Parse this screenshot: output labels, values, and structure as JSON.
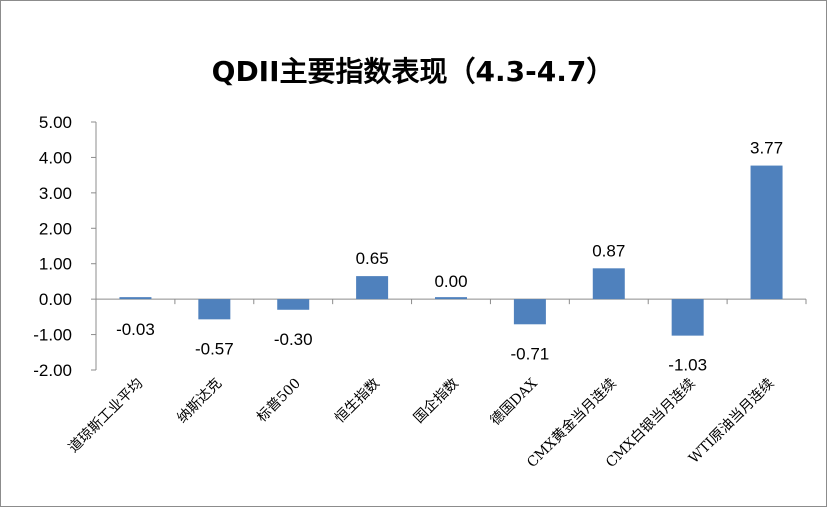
{
  "chart_data": {
    "type": "bar",
    "title": "QDII主要指数表现（4.3-4.7）",
    "categories": [
      "道琼斯工业平均",
      "纳斯达克",
      "标普500",
      "恒生指数",
      "国企指数",
      "德国DAX",
      "CMX黄金当月连续",
      "CMX白银当月连续",
      "WTI原油当月连续"
    ],
    "values": [
      -0.03,
      -0.57,
      -0.3,
      0.65,
      0.0,
      -0.71,
      0.87,
      -1.03,
      3.77
    ],
    "data_labels": [
      "-0.03",
      "-0.57",
      "-0.30",
      "0.65",
      "0.00",
      "-0.71",
      "0.87",
      "-1.03",
      "3.77"
    ],
    "yticks": [
      "5.00",
      "4.00",
      "3.00",
      "2.00",
      "1.00",
      "0.00",
      "-1.00",
      "-2.00"
    ],
    "ylim": [
      -2,
      5
    ],
    "bar_color": "#4f81bd",
    "grid": false,
    "legend": "none"
  }
}
